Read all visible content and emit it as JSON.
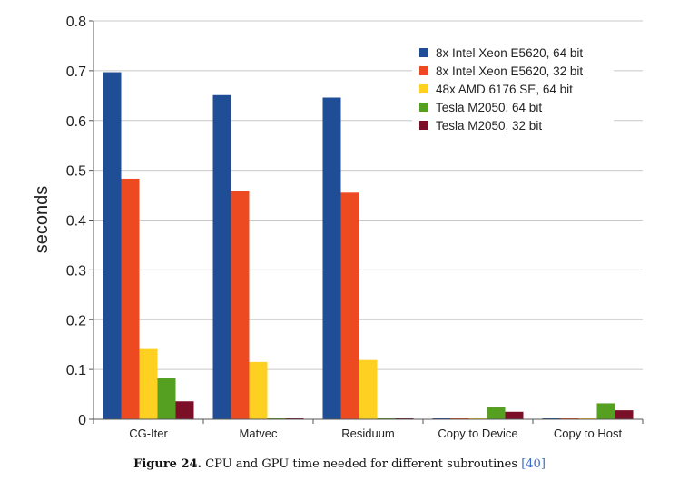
{
  "chart_data": {
    "type": "bar",
    "ylabel": "seconds",
    "xlabel": "",
    "ylim": [
      0,
      0.8
    ],
    "yticks": [
      0,
      0.1,
      0.2,
      0.3,
      0.4,
      0.5,
      0.6,
      0.7,
      0.8
    ],
    "grid": "horizontal",
    "legend_position": "top-right",
    "categories": [
      "CG-Iter",
      "Matvec",
      "Residuum",
      "Copy to Device",
      "Copy to Host"
    ],
    "series": [
      {
        "name": "8x Intel Xeon E5620, 64 bit",
        "color": "#1f4e96",
        "values": [
          0.697,
          0.651,
          0.646,
          0,
          0
        ]
      },
      {
        "name": "8x Intel Xeon E5620, 32 bit",
        "color": "#ee4a22",
        "values": [
          0.483,
          0.459,
          0.455,
          0,
          0
        ]
      },
      {
        "name": "48x AMD 6176 SE, 64 bit",
        "color": "#fdd022",
        "values": [
          0.141,
          0.115,
          0.119,
          0,
          0
        ]
      },
      {
        "name": "Tesla M2050, 64 bit",
        "color": "#56a021",
        "values": [
          0.082,
          0,
          0,
          0.025,
          0.032
        ]
      },
      {
        "name": "Tesla M2050, 32 bit",
        "color": "#7b0f27",
        "values": [
          0.036,
          0,
          0,
          0.015,
          0.018
        ]
      }
    ]
  },
  "caption": {
    "label": "Figure 24.",
    "text": "CPU and GPU time needed for different subroutines",
    "ref": "[40]"
  }
}
